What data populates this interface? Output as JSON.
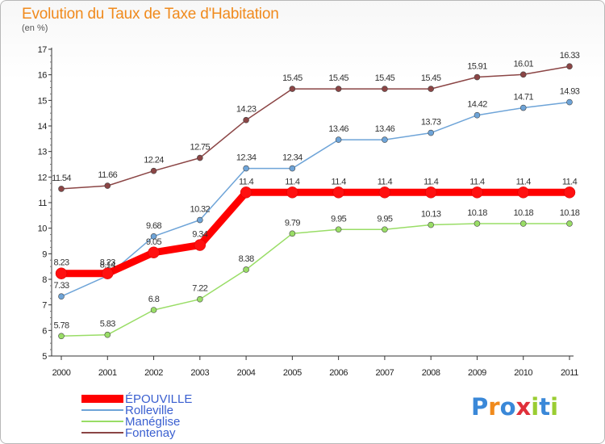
{
  "header": {
    "title": "Evolution du Taux de Taxe d'Habitation",
    "unit": "(en %)"
  },
  "logo": {
    "text": "Proxiti"
  },
  "chart_data": {
    "type": "line",
    "x": [
      2000,
      2001,
      2002,
      2003,
      2004,
      2005,
      2006,
      2007,
      2008,
      2009,
      2010,
      2011
    ],
    "ylim": [
      5,
      17
    ],
    "yticks": [
      5,
      6,
      7,
      8,
      9,
      10,
      11,
      12,
      13,
      14,
      15,
      16,
      17
    ],
    "grid": false,
    "legend_position": "bottom-left",
    "series": [
      {
        "name": "ÉPOUVILLE",
        "color": "#ff0000",
        "emphasis": true,
        "values": [
          8.23,
          8.23,
          9.05,
          9.34,
          11.4,
          11.4,
          11.4,
          11.4,
          11.4,
          11.4,
          11.4,
          11.4
        ]
      },
      {
        "name": "Rolleville",
        "color": "#6ea4d8",
        "values": [
          7.33,
          8.14,
          9.68,
          10.32,
          12.34,
          12.34,
          13.46,
          13.46,
          13.73,
          14.42,
          14.71,
          14.93
        ]
      },
      {
        "name": "Manéglise",
        "color": "#99dd66",
        "values": [
          5.78,
          5.83,
          6.8,
          7.22,
          8.38,
          9.79,
          9.95,
          9.95,
          10.13,
          10.18,
          10.18,
          10.18
        ]
      },
      {
        "name": "Fontenay",
        "color": "#8b4545",
        "values": [
          11.54,
          11.66,
          12.24,
          12.75,
          14.23,
          15.45,
          15.45,
          15.45,
          15.45,
          15.91,
          16.01,
          16.33
        ]
      }
    ]
  }
}
